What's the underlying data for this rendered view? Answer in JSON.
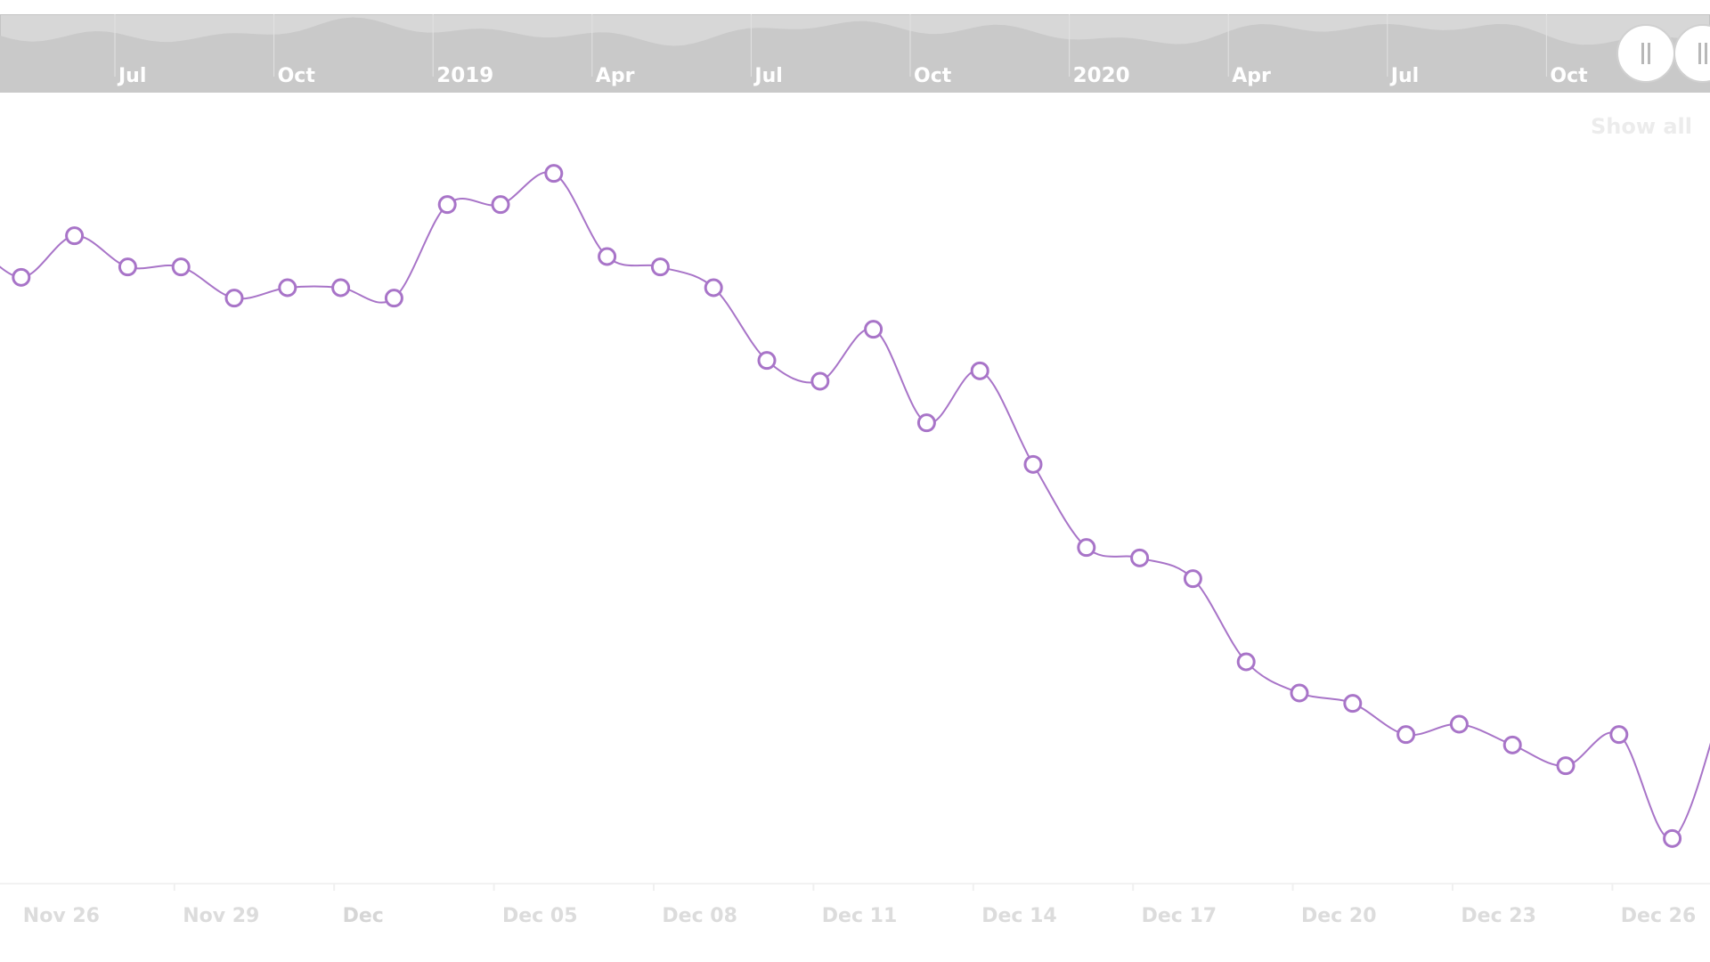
{
  "show_all_label": "Show all",
  "scrollbar": {
    "labels": [
      {
        "text": "Jul",
        "major": false
      },
      {
        "text": "Oct",
        "major": false
      },
      {
        "text": "2019",
        "major": true
      },
      {
        "text": "Apr",
        "major": false
      },
      {
        "text": "Jul",
        "major": false
      },
      {
        "text": "Oct",
        "major": false
      },
      {
        "text": "2020",
        "major": true
      },
      {
        "text": "Apr",
        "major": false
      },
      {
        "text": "Jul",
        "major": false
      },
      {
        "text": "Oct",
        "major": false
      }
    ],
    "grip_icons": [
      "pause-grip-icon",
      "pause-grip-icon"
    ]
  },
  "chart_data": {
    "type": "line",
    "x_tick_labels": [
      {
        "text": "Nov 26",
        "major": false
      },
      {
        "text": "Nov 29",
        "major": false
      },
      {
        "text": "Dec",
        "major": true
      },
      {
        "text": "Dec 05",
        "major": false
      },
      {
        "text": "Dec 08",
        "major": false
      },
      {
        "text": "Dec 11",
        "major": false
      },
      {
        "text": "Dec 14",
        "major": false
      },
      {
        "text": "Dec 17",
        "major": false
      },
      {
        "text": "Dec 20",
        "major": false
      },
      {
        "text": "Dec 23",
        "major": false
      },
      {
        "text": "Dec 26",
        "major": false
      }
    ],
    "series": [
      {
        "color": "#a874c8",
        "x": [
          "2020-11-25",
          "2020-11-26",
          "2020-11-27",
          "2020-11-28",
          "2020-11-29",
          "2020-11-30",
          "2020-12-01",
          "2020-12-02",
          "2020-12-03",
          "2020-12-04",
          "2020-12-05",
          "2020-12-06",
          "2020-12-07",
          "2020-12-08",
          "2020-12-09",
          "2020-12-10",
          "2020-12-11",
          "2020-12-12",
          "2020-12-13",
          "2020-12-14",
          "2020-12-15",
          "2020-12-16",
          "2020-12-17",
          "2020-12-18",
          "2020-12-19",
          "2020-12-20",
          "2020-12-21",
          "2020-12-22",
          "2020-12-23",
          "2020-12-24",
          "2020-12-25",
          "2020-12-26",
          "2020-12-27",
          "2020-12-28"
        ],
        "values": [
          86,
          82,
          86,
          83,
          83,
          80,
          81,
          81,
          80,
          89,
          89,
          92,
          84,
          83,
          81,
          74,
          72,
          77,
          68,
          73,
          64,
          56,
          55,
          53,
          45,
          42,
          41,
          38,
          39,
          37,
          35,
          38,
          28,
          42
        ]
      }
    ],
    "ylim": [
      24,
      96
    ],
    "grid": false,
    "legend": "none"
  }
}
